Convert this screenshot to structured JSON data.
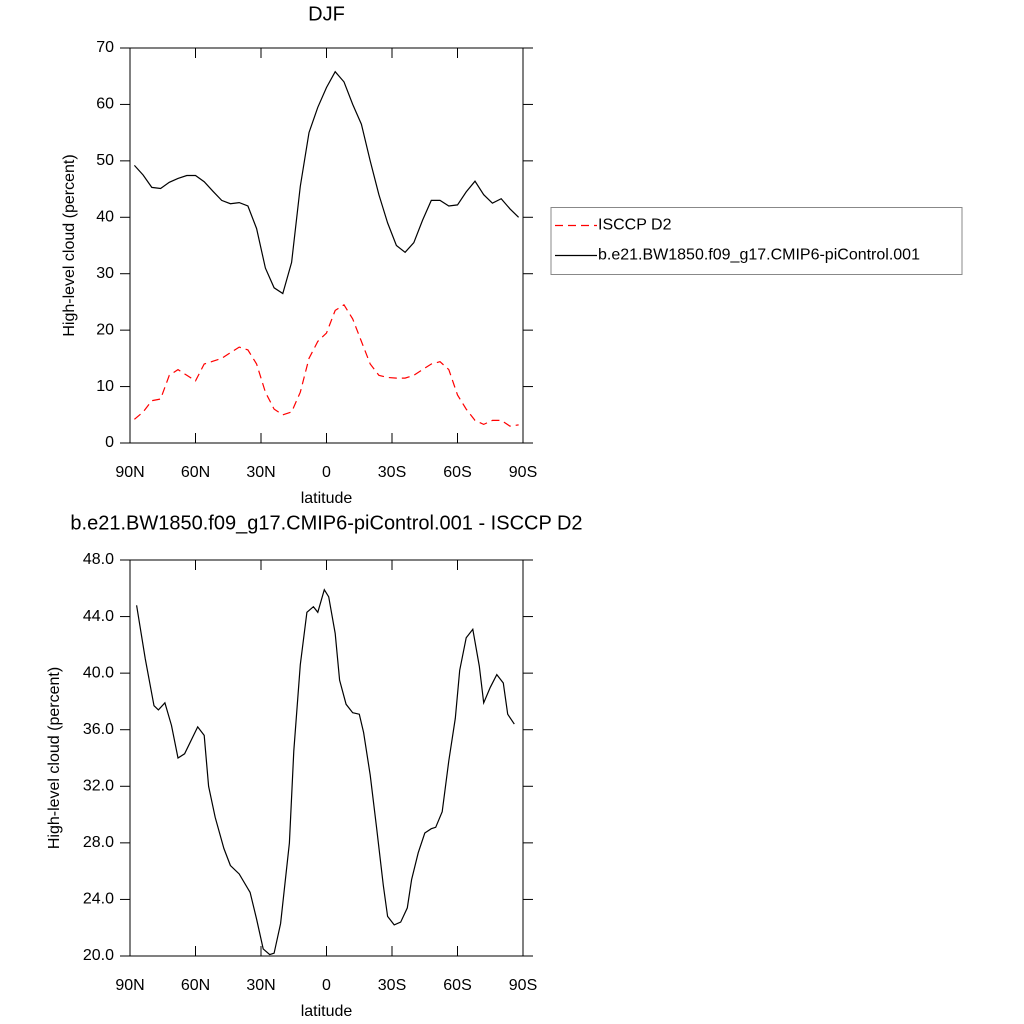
{
  "chart_data": [
    {
      "type": "line",
      "title": "DJF",
      "xlabel": "latitude",
      "ylabel": "High-level cloud (percent)",
      "x": [
        88,
        84,
        80,
        76,
        72,
        68,
        64,
        60,
        56,
        52,
        48,
        44,
        40,
        36,
        32,
        28,
        24,
        20,
        16,
        12,
        8,
        4,
        0,
        -4,
        -8,
        -12,
        -16,
        -20,
        -24,
        -28,
        -32,
        -36,
        -40,
        -44,
        -48,
        -52,
        -56,
        -60,
        -64,
        -68,
        -72,
        -76,
        -80,
        -84,
        -88
      ],
      "xlim": [
        90,
        -90
      ],
      "xticks": [
        {
          "value": 90,
          "label": "90N"
        },
        {
          "value": 60,
          "label": "60N"
        },
        {
          "value": 30,
          "label": "30N"
        },
        0,
        {
          "value": -30,
          "label": "30S"
        },
        {
          "value": -60,
          "label": "60S"
        },
        {
          "value": -90,
          "label": "90S"
        }
      ],
      "ylim": [
        0,
        70
      ],
      "yticks": [
        0,
        10,
        20,
        30,
        40,
        50,
        60,
        70
      ],
      "legend": "right",
      "series": [
        {
          "name": "ISCCP D2",
          "color": "#ff0000",
          "line_style": "dashed",
          "values": [
            4.2,
            5.5,
            7.5,
            7.8,
            12,
            13,
            12,
            11,
            14,
            14.5,
            15,
            16,
            17,
            16.5,
            14,
            9,
            6,
            5,
            5.5,
            9,
            15,
            18,
            19.5,
            23.5,
            24.5,
            22,
            18,
            14,
            12,
            11.6,
            11.5,
            11.5,
            12,
            13,
            14,
            14.4,
            13,
            8.5,
            6,
            4,
            3.3,
            4,
            4,
            3,
            3.2
          ]
        },
        {
          "name": "b.e21.BW1850.f09_g17.CMIP6-piControl.001",
          "color": "#000000",
          "line_style": "solid",
          "values": [
            49.2,
            47.5,
            45.3,
            45.1,
            46.2,
            46.9,
            47.4,
            47.4,
            46.3,
            44.6,
            43,
            42.4,
            42.6,
            42,
            38,
            31,
            27.5,
            26.5,
            32,
            45.5,
            55,
            59.5,
            63,
            65.8,
            64,
            60,
            56.5,
            50,
            44,
            39,
            35,
            33.8,
            35.5,
            39.5,
            43,
            43,
            42,
            42.2,
            44.5,
            46.4,
            44,
            42.5,
            43.3,
            41.5,
            40
          ]
        }
      ]
    },
    {
      "type": "line",
      "title": "b.e21.BW1850.f09_g17.CMIP6-piControl.001 - ISCCP D2",
      "xlabel": "latitude",
      "ylabel": "High-level cloud (percent)",
      "x": [
        87,
        83,
        79,
        77,
        74,
        71,
        68,
        65,
        59,
        56,
        54,
        51,
        47,
        44,
        40,
        35,
        32,
        29,
        26,
        24,
        21,
        17,
        15,
        12,
        9,
        6,
        4,
        1,
        -1,
        -4,
        -6,
        -9,
        -12,
        -15,
        -17,
        -20,
        -23,
        -26,
        -28,
        -31,
        -34,
        -37,
        -39,
        -42,
        -45,
        -48,
        -50,
        -53,
        -56,
        -59,
        -61,
        -64,
        -67,
        -70,
        -72,
        -75,
        -78,
        -81,
        -83,
        -86
      ],
      "values": [
        44.8,
        41,
        37.7,
        37.4,
        37.9,
        36.3,
        34,
        34.3,
        36.2,
        35.6,
        32,
        29.8,
        27.6,
        26.4,
        25.8,
        24.5,
        22.6,
        20.5,
        20.1,
        20.2,
        22.3,
        28,
        34.5,
        40.6,
        44.3,
        44.7,
        44.3,
        45.9,
        45.4,
        42.8,
        39.5,
        37.8,
        37.2,
        37.1,
        35.8,
        32.8,
        29,
        25,
        22.8,
        22.2,
        22.4,
        23.4,
        25.4,
        27.3,
        28.7,
        29,
        29.1,
        30.2,
        33.8,
        36.8,
        40.2,
        42.5,
        43.1,
        40.5,
        37.9,
        39,
        39.9,
        39.3,
        37.1,
        36.4
      ],
      "color": "#000000",
      "line_style": "solid",
      "xlim": [
        90,
        -90
      ],
      "xticks": [
        {
          "value": 90,
          "label": "90N"
        },
        {
          "value": 60,
          "label": "60N"
        },
        {
          "value": 30,
          "label": "30N"
        },
        0,
        {
          "value": -30,
          "label": "30S"
        },
        {
          "value": -60,
          "label": "60S"
        },
        {
          "value": -90,
          "label": "90S"
        }
      ],
      "ylim": [
        20,
        48
      ],
      "yticks": [
        {
          "value": 20,
          "label": "20.0"
        },
        {
          "value": 24,
          "label": "24.0"
        },
        {
          "value": 28,
          "label": "28.0"
        },
        {
          "value": 32,
          "label": "32.0"
        },
        {
          "value": 36,
          "label": "36.0"
        },
        {
          "value": 40,
          "label": "40.0"
        },
        {
          "value": 44,
          "label": "44.0"
        },
        {
          "value": 48,
          "label": "48.0"
        }
      ]
    }
  ]
}
